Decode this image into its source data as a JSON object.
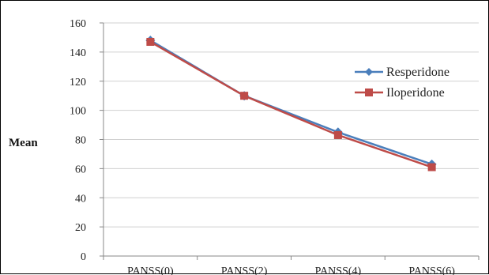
{
  "chart_data": {
    "type": "line",
    "title": "",
    "xlabel": "",
    "ylabel": "Mean",
    "categories": [
      "PANSS(0)",
      "PANSS(2)",
      "PANSS(4)",
      "PANSS(6)"
    ],
    "ylim": [
      0,
      160
    ],
    "yticks": [
      "0",
      "20",
      "40",
      "60",
      "80",
      "100",
      "120",
      "140",
      "160"
    ],
    "grid": true,
    "legend_position": "right",
    "series": [
      {
        "name": "Resperidone",
        "values": [
          148,
          110,
          85,
          63
        ],
        "color": "#4a7ebb",
        "marker": "diamond"
      },
      {
        "name": "Iloperidone",
        "values": [
          147,
          110,
          83,
          61
        ],
        "color": "#be4b48",
        "marker": "square"
      }
    ]
  }
}
